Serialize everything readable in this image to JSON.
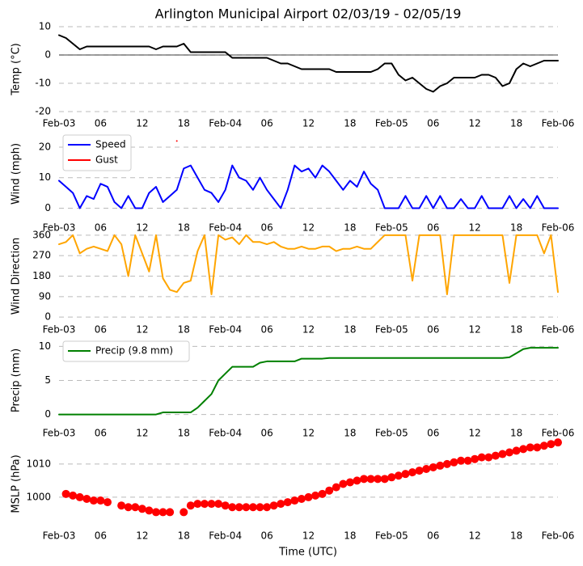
{
  "chart_data": [
    {
      "type": "line",
      "title": "Arlington Municipal Airport 02/03/19 - 02/05/19",
      "ylabel": "Temp (°C)",
      "x": [
        0,
        1,
        2,
        3,
        4,
        5,
        6,
        7,
        8,
        9,
        10,
        11,
        12,
        13,
        14,
        15,
        16,
        17,
        18,
        19,
        20,
        21,
        22,
        23,
        24,
        25,
        26,
        27,
        28,
        29,
        30,
        31,
        32,
        33,
        34,
        35,
        36,
        37,
        38,
        39,
        40,
        41,
        42,
        43,
        44,
        45,
        46,
        47,
        48,
        49,
        50,
        51,
        52,
        53,
        54,
        55,
        56,
        57,
        58,
        59,
        60,
        61,
        62,
        63,
        64,
        65,
        66,
        67,
        68,
        69,
        70,
        71,
        72
      ],
      "xlim": [
        0,
        72
      ],
      "xticks": [
        {
          "value": 0,
          "label": "Feb-03"
        },
        {
          "value": 6,
          "label": "06"
        },
        {
          "value": 12,
          "label": "12"
        },
        {
          "value": 18,
          "label": "18"
        },
        {
          "value": 24,
          "label": "Feb-04"
        },
        {
          "value": 30,
          "label": "06"
        },
        {
          "value": 36,
          "label": "12"
        },
        {
          "value": 42,
          "label": "18"
        },
        {
          "value": 48,
          "label": "Feb-05"
        },
        {
          "value": 54,
          "label": "06"
        },
        {
          "value": 60,
          "label": "12"
        },
        {
          "value": 66,
          "label": "18"
        },
        {
          "value": 72,
          "label": "Feb-06"
        }
      ],
      "series": [
        {
          "name": "Temp",
          "color": "#000000",
          "values": [
            7,
            6,
            4,
            2,
            3,
            3,
            3,
            3,
            3,
            3,
            3,
            3,
            3,
            3,
            2,
            3,
            3,
            3,
            4,
            1,
            1,
            1,
            1,
            1,
            1,
            -1,
            -1,
            -1,
            -1,
            -1,
            -1,
            -2,
            -3,
            -3,
            -4,
            -5,
            -5,
            -5,
            -5,
            -5,
            -6,
            -6,
            -6,
            -6,
            -6,
            -6,
            -5,
            -3,
            -3,
            -7,
            -9,
            -8,
            -10,
            -12,
            -13,
            -11,
            -10,
            -8,
            -8,
            -8,
            -8,
            -7,
            -7,
            -8,
            -11,
            -10,
            -5,
            -3,
            -4,
            -3,
            -2,
            -2,
            -2
          ]
        }
      ],
      "ylim": [
        -20,
        10
      ],
      "yticks": [
        -20,
        -10,
        0,
        10
      ],
      "grid": true,
      "zero_line": true
    },
    {
      "type": "line",
      "ylabel": "Wind (mph)",
      "x": [
        0,
        1,
        2,
        3,
        4,
        5,
        6,
        7,
        8,
        9,
        10,
        11,
        12,
        13,
        14,
        15,
        16,
        17,
        18,
        19,
        20,
        21,
        22,
        23,
        24,
        25,
        26,
        27,
        28,
        29,
        30,
        31,
        32,
        33,
        34,
        35,
        36,
        37,
        38,
        39,
        40,
        41,
        42,
        43,
        44,
        45,
        46,
        47,
        48,
        49,
        50,
        51,
        52,
        53,
        54,
        55,
        56,
        57,
        58,
        59,
        60,
        61,
        62,
        63,
        64,
        65,
        66,
        67,
        68,
        69,
        70,
        71,
        72
      ],
      "xlim": [
        0,
        72
      ],
      "xticks": [
        {
          "value": 0,
          "label": "Feb-03"
        },
        {
          "value": 6,
          "label": "06"
        },
        {
          "value": 12,
          "label": "12"
        },
        {
          "value": 18,
          "label": "18"
        },
        {
          "value": 24,
          "label": "Feb-04"
        },
        {
          "value": 30,
          "label": "06"
        },
        {
          "value": 36,
          "label": "12"
        },
        {
          "value": 42,
          "label": "18"
        },
        {
          "value": 48,
          "label": "Feb-05"
        },
        {
          "value": 54,
          "label": "06"
        },
        {
          "value": 60,
          "label": "12"
        },
        {
          "value": 66,
          "label": "18"
        },
        {
          "value": 72,
          "label": "Feb-06"
        }
      ],
      "series": [
        {
          "name": "Speed",
          "color": "#0000ff",
          "values": [
            9,
            7,
            5,
            0,
            4,
            3,
            8,
            7,
            2,
            0,
            4,
            0,
            0,
            5,
            7,
            2,
            4,
            6,
            13,
            14,
            10,
            6,
            5,
            2,
            6,
            14,
            10,
            9,
            6,
            10,
            6,
            3,
            0,
            6,
            14,
            12,
            13,
            10,
            14,
            12,
            9,
            6,
            9,
            7,
            12,
            8,
            6,
            0,
            0,
            0,
            4,
            0,
            0,
            4,
            0,
            4,
            0,
            0,
            3,
            0,
            0,
            4,
            0,
            0,
            0,
            4,
            0,
            3,
            0,
            4,
            0,
            0,
            0
          ]
        },
        {
          "name": "Gust",
          "color": "#ff0000",
          "values": [
            null,
            null,
            null,
            null,
            null,
            null,
            null,
            null,
            null,
            null,
            null,
            null,
            null,
            null,
            null,
            null,
            null,
            22,
            null,
            null,
            null,
            null,
            null,
            null,
            null,
            null,
            null,
            null,
            null,
            null,
            null,
            null,
            null,
            null,
            null,
            null,
            null,
            null,
            null,
            null,
            null,
            null,
            null,
            null,
            null,
            null,
            null,
            null,
            null,
            null,
            null,
            null,
            null,
            null,
            null,
            null,
            null,
            null,
            null,
            null,
            null,
            null,
            null,
            null,
            null,
            null,
            null,
            null,
            null,
            null,
            null,
            null,
            null
          ]
        }
      ],
      "ylim": [
        -2,
        24.5
      ],
      "yticks": [
        0,
        10,
        20
      ],
      "grid": true,
      "legend": "upper left"
    },
    {
      "type": "line",
      "ylabel": "Wind Direction",
      "x": [
        0,
        1,
        2,
        3,
        4,
        5,
        6,
        7,
        8,
        9,
        10,
        11,
        12,
        13,
        14,
        15,
        16,
        17,
        18,
        19,
        20,
        21,
        22,
        23,
        24,
        25,
        26,
        27,
        28,
        29,
        30,
        31,
        32,
        33,
        34,
        35,
        36,
        37,
        38,
        39,
        40,
        41,
        42,
        43,
        44,
        45,
        46,
        47,
        48,
        49,
        50,
        51,
        52,
        53,
        54,
        55,
        56,
        57,
        58,
        59,
        60,
        61,
        62,
        63,
        64,
        65,
        66,
        67,
        68,
        69,
        70,
        71,
        72
      ],
      "xlim": [
        0,
        72
      ],
      "xticks": [
        {
          "value": 0,
          "label": "Feb-03"
        },
        {
          "value": 6,
          "label": "06"
        },
        {
          "value": 12,
          "label": "12"
        },
        {
          "value": 18,
          "label": "18"
        },
        {
          "value": 24,
          "label": "Feb-04"
        },
        {
          "value": 30,
          "label": "06"
        },
        {
          "value": 36,
          "label": "12"
        },
        {
          "value": 42,
          "label": "18"
        },
        {
          "value": 48,
          "label": "Feb-05"
        },
        {
          "value": 54,
          "label": "06"
        },
        {
          "value": 60,
          "label": "12"
        },
        {
          "value": 66,
          "label": "18"
        },
        {
          "value": 72,
          "label": "Feb-06"
        }
      ],
      "series": [
        {
          "name": "Direction",
          "color": "#ffa500",
          "values": [
            320,
            330,
            360,
            280,
            300,
            310,
            300,
            290,
            360,
            320,
            180,
            360,
            280,
            200,
            360,
            170,
            120,
            110,
            150,
            160,
            290,
            360,
            100,
            360,
            340,
            350,
            320,
            360,
            330,
            330,
            320,
            330,
            310,
            300,
            300,
            310,
            300,
            300,
            310,
            310,
            290,
            300,
            300,
            310,
            300,
            300,
            330,
            360,
            360,
            360,
            360,
            160,
            360,
            360,
            360,
            360,
            100,
            360,
            360,
            360,
            360,
            360,
            360,
            360,
            360,
            150,
            360,
            360,
            360,
            360,
            280,
            360,
            110
          ]
        }
      ],
      "ylim": [
        -10,
        370
      ],
      "yticks": [
        0,
        90,
        180,
        270,
        360
      ],
      "grid": true
    },
    {
      "type": "line",
      "ylabel": "Precip (mm)",
      "x": [
        0,
        1,
        2,
        3,
        4,
        5,
        6,
        7,
        8,
        9,
        10,
        11,
        12,
        13,
        14,
        15,
        16,
        17,
        18,
        19,
        20,
        21,
        22,
        23,
        24,
        25,
        26,
        27,
        28,
        29,
        30,
        31,
        32,
        33,
        34,
        35,
        36,
        37,
        38,
        39,
        40,
        41,
        42,
        43,
        44,
        45,
        46,
        47,
        48,
        49,
        50,
        51,
        52,
        53,
        54,
        55,
        56,
        57,
        58,
        59,
        60,
        61,
        62,
        63,
        64,
        65,
        66,
        67,
        68,
        69,
        70,
        71,
        72
      ],
      "xlim": [
        0,
        72
      ],
      "xticks": [
        {
          "value": 0,
          "label": "Feb-03"
        },
        {
          "value": 6,
          "label": "06"
        },
        {
          "value": 12,
          "label": "12"
        },
        {
          "value": 18,
          "label": "18"
        },
        {
          "value": 24,
          "label": "Feb-04"
        },
        {
          "value": 30,
          "label": "06"
        },
        {
          "value": 36,
          "label": "12"
        },
        {
          "value": 42,
          "label": "18"
        },
        {
          "value": 48,
          "label": "Feb-05"
        },
        {
          "value": 54,
          "label": "06"
        },
        {
          "value": 60,
          "label": "12"
        },
        {
          "value": 66,
          "label": "18"
        },
        {
          "value": 72,
          "label": "Feb-06"
        }
      ],
      "series": [
        {
          "name": "Precip (9.8 mm)",
          "color": "#008000",
          "values": [
            0,
            0,
            0,
            0,
            0,
            0,
            0,
            0,
            0,
            0,
            0,
            0,
            0,
            0,
            0,
            0.3,
            0.3,
            0.3,
            0.3,
            0.3,
            1,
            2,
            3,
            5,
            6,
            7,
            7,
            7,
            7,
            7.6,
            7.8,
            7.8,
            7.8,
            7.8,
            7.8,
            8.2,
            8.2,
            8.2,
            8.2,
            8.3,
            8.3,
            8.3,
            8.3,
            8.3,
            8.3,
            8.3,
            8.3,
            8.3,
            8.3,
            8.3,
            8.3,
            8.3,
            8.3,
            8.3,
            8.3,
            8.3,
            8.3,
            8.3,
            8.3,
            8.3,
            8.3,
            8.3,
            8.3,
            8.3,
            8.3,
            8.4,
            9,
            9.6,
            9.8,
            9.8,
            9.8,
            9.8,
            9.8
          ]
        }
      ],
      "ylim": [
        -1,
        11
      ],
      "yticks": [
        0,
        5,
        10
      ],
      "grid": true,
      "legend": "upper left"
    },
    {
      "type": "scatter",
      "ylabel": "MSLP (hPa)",
      "xlabel": "Time (UTC)",
      "x": [
        0,
        1,
        2,
        3,
        4,
        5,
        6,
        7,
        8,
        9,
        10,
        11,
        12,
        13,
        14,
        15,
        16,
        17,
        18,
        19,
        20,
        21,
        22,
        23,
        24,
        25,
        26,
        27,
        28,
        29,
        30,
        31,
        32,
        33,
        34,
        35,
        36,
        37,
        38,
        39,
        40,
        41,
        42,
        43,
        44,
        45,
        46,
        47,
        48,
        49,
        50,
        51,
        52,
        53,
        54,
        55,
        56,
        57,
        58,
        59,
        60,
        61,
        62,
        63,
        64,
        65,
        66,
        67,
        68,
        69,
        70,
        71,
        72
      ],
      "xlim": [
        0,
        72
      ],
      "xticks": [
        {
          "value": 0,
          "label": "Feb-03"
        },
        {
          "value": 6,
          "label": "06"
        },
        {
          "value": 12,
          "label": "12"
        },
        {
          "value": 18,
          "label": "18"
        },
        {
          "value": 24,
          "label": "Feb-04"
        },
        {
          "value": 30,
          "label": "06"
        },
        {
          "value": 36,
          "label": "12"
        },
        {
          "value": 42,
          "label": "18"
        },
        {
          "value": 48,
          "label": "Feb-05"
        },
        {
          "value": 54,
          "label": "06"
        },
        {
          "value": 60,
          "label": "12"
        },
        {
          "value": 66,
          "label": "18"
        },
        {
          "value": 72,
          "label": "Feb-06"
        }
      ],
      "series": [
        {
          "name": "MSLP",
          "color": "#ff0000",
          "values": [
            null,
            1001,
            1000.5,
            1000,
            999.5,
            999,
            999,
            998.5,
            null,
            997.5,
            997,
            997,
            996.5,
            996,
            995.5,
            995.5,
            995.5,
            null,
            995.5,
            997.5,
            998,
            998,
            998,
            998,
            997.5,
            997,
            997,
            997,
            997,
            997,
            997,
            997.5,
            998,
            998.5,
            999,
            999.5,
            1000,
            1000.5,
            1001,
            1002,
            1003,
            1004,
            1004.5,
            1005,
            1005.5,
            1005.5,
            1005.5,
            1005.5,
            1006,
            1006.5,
            1007,
            1007.5,
            1008,
            1008.5,
            1009,
            1009.5,
            1010,
            1010.5,
            1011,
            1011,
            1011.5,
            1012,
            1012,
            1012.5,
            1013,
            1013.5,
            1014,
            1014.5,
            1015,
            1015,
            1015.5,
            1016,
            1016.5
          ]
        }
      ],
      "ylim": [
        990,
        1018
      ],
      "yticks": [
        1000,
        1010
      ],
      "grid": true
    }
  ]
}
